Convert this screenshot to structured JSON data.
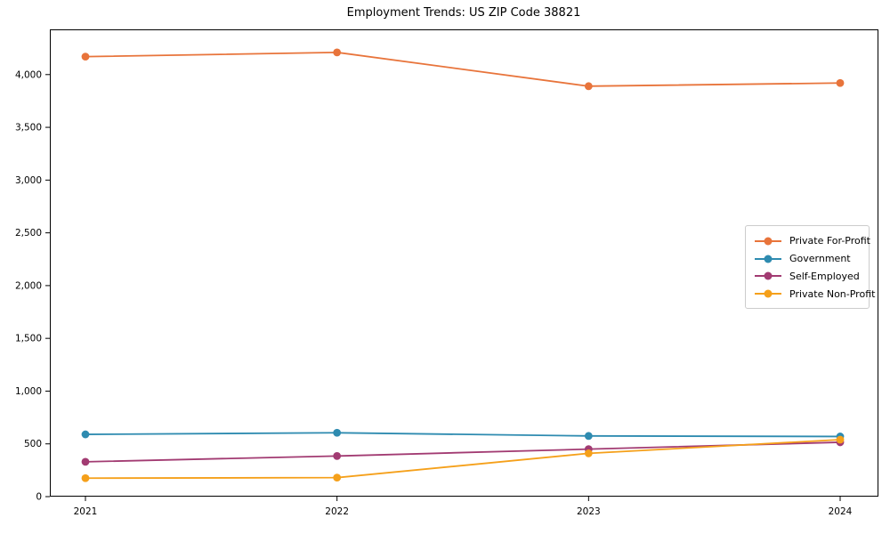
{
  "chart_data": {
    "type": "line",
    "title": "Employment Trends: US ZIP Code 38821",
    "xlabel": "",
    "ylabel": "",
    "grid": false,
    "legend_position": "center-right",
    "x": [
      2021,
      2022,
      2023,
      2024
    ],
    "x_tick_labels": [
      "2021",
      "2022",
      "2023",
      "2024"
    ],
    "y_ticks": [
      0,
      500,
      1000,
      1500,
      2000,
      2500,
      3000,
      3500,
      4000
    ],
    "y_tick_labels": [
      "0",
      "500",
      "1,000",
      "1,500",
      "2,000",
      "2,500",
      "3,000",
      "3,500",
      "4,000"
    ],
    "ylim": [
      0,
      4420
    ],
    "marker": "circle",
    "series": [
      {
        "name": "Private For-Profit",
        "color": "#e8743b",
        "values": [
          4170,
          4210,
          3890,
          3920
        ]
      },
      {
        "name": "Government",
        "color": "#2e8bb0",
        "values": [
          590,
          605,
          575,
          570
        ]
      },
      {
        "name": "Self-Employed",
        "color": "#a23b72",
        "values": [
          330,
          385,
          450,
          515
        ]
      },
      {
        "name": "Private Non-Profit",
        "color": "#f5a01a",
        "values": [
          175,
          180,
          410,
          540
        ]
      }
    ]
  }
}
